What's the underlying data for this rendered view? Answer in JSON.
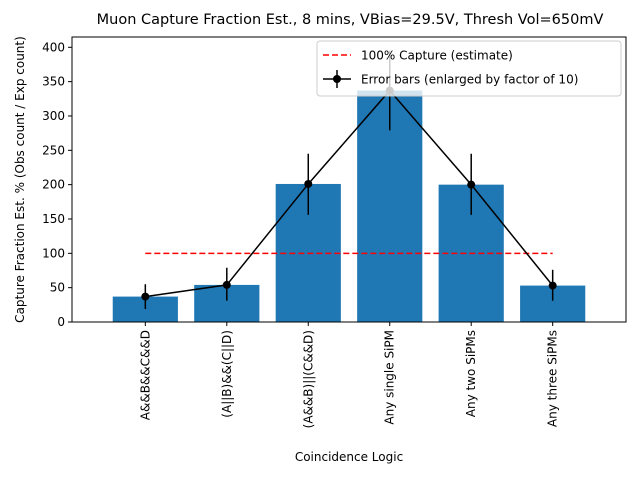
{
  "chart_data": {
    "type": "bar",
    "title": "Muon Capture Fraction Est., 8 mins, VBias=29.5V, Thresh Vol=650mV",
    "xlabel": "Coincidence Logic",
    "ylabel": "Capture Fraction Est. % (Obs count / Exp count)",
    "categories": [
      "A&&B&&C&&D",
      "(A||B)&&(C||D)",
      "(A&&B)||(C&&D)",
      "Any single SiPM",
      "Any two SiPMs",
      "Any three SiPMs"
    ],
    "values": [
      37,
      54,
      201,
      337,
      200,
      53
    ],
    "error_bars": {
      "name": "Error bars (enlarged by factor of 10)",
      "lower": [
        19,
        31,
        156,
        279,
        156,
        31
      ],
      "upper": [
        55,
        79,
        245,
        395,
        245,
        76
      ]
    },
    "reference_line": {
      "name": "100% Capture (estimate)",
      "value": 100
    },
    "ylim": [
      0,
      415
    ],
    "yticks": [
      0,
      50,
      100,
      150,
      200,
      250,
      300,
      350,
      400
    ],
    "grid": false,
    "legend_placement": "top-right",
    "colors": {
      "bars": "#1f77b4",
      "error_line": "#000000",
      "reference_line": "#ff0000"
    }
  }
}
